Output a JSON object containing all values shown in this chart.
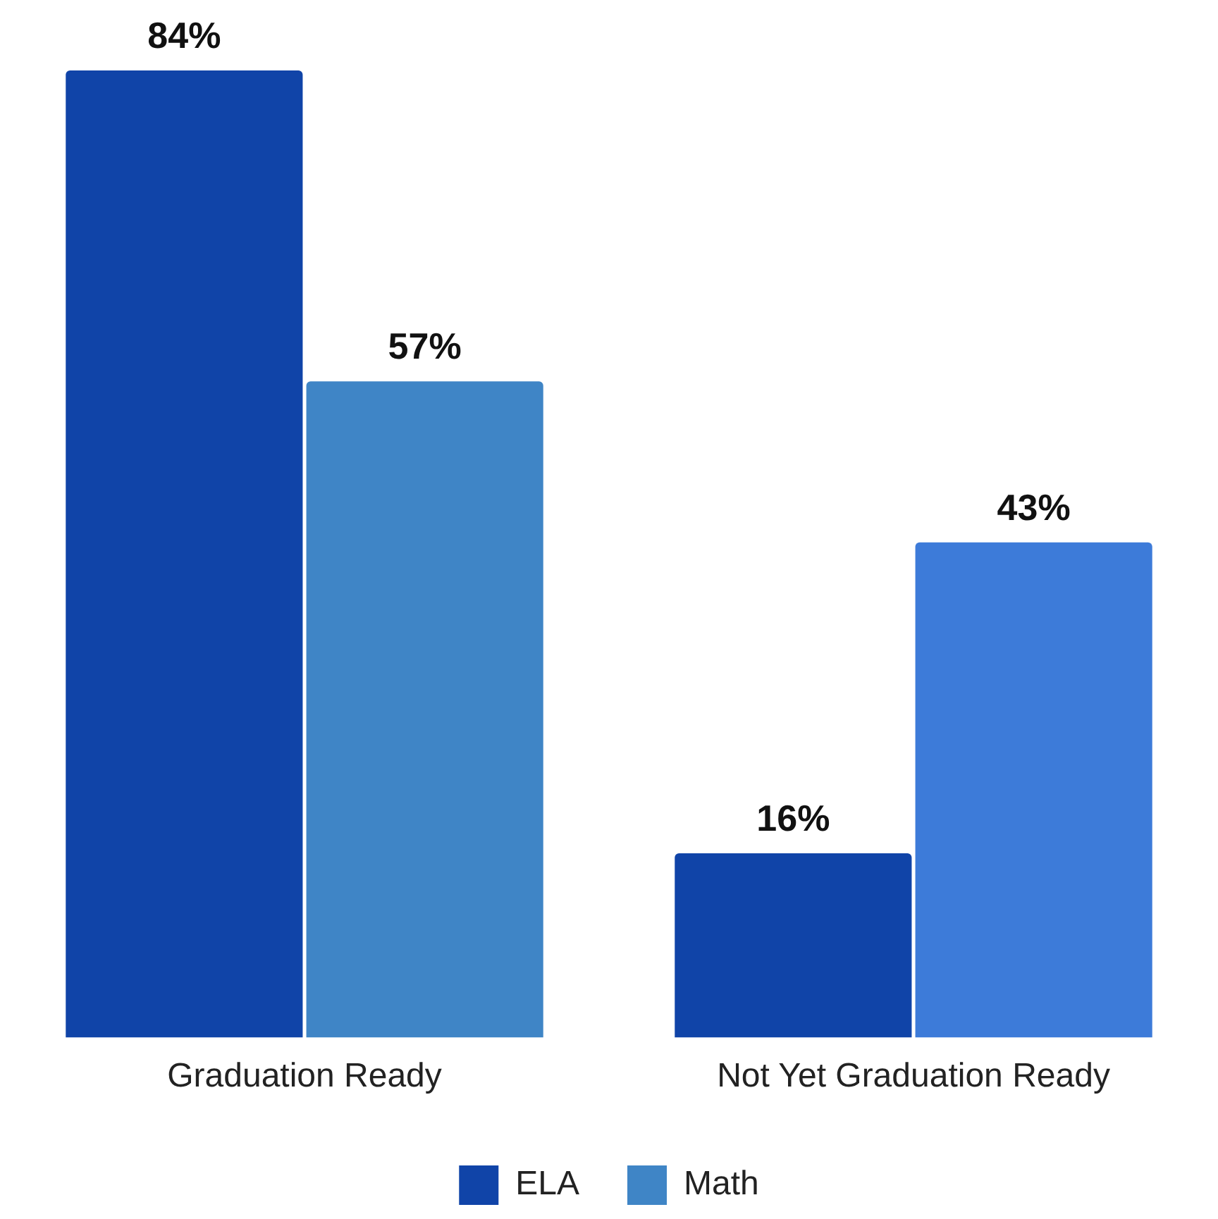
{
  "chart_data": {
    "type": "bar",
    "categories": [
      "Graduation Ready",
      "Not Yet Graduation Ready"
    ],
    "series": [
      {
        "name": "ELA",
        "color": "#1044a8",
        "values": [
          84,
          16
        ],
        "value_labels": [
          "84%",
          "16%"
        ]
      },
      {
        "name": "Math",
        "color": "#3d7fd8",
        "colors": [
          "#3f85c6",
          "#3d7bd9"
        ],
        "values": [
          57,
          43
        ],
        "value_labels": [
          "57%",
          "43%"
        ]
      }
    ],
    "legend": "bottom",
    "grid": false
  }
}
